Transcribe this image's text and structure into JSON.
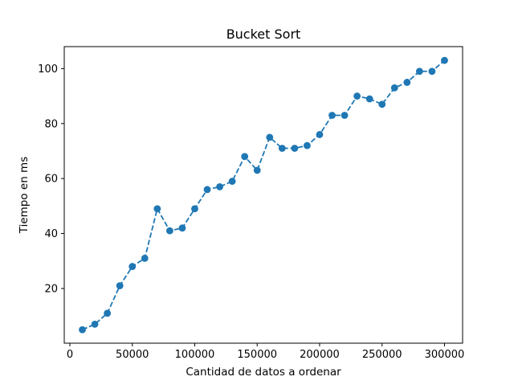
{
  "chart_data": {
    "type": "line",
    "title": "Bucket Sort",
    "xlabel": "Cantidad de datos a ordenar",
    "ylabel": "Tiempo en ms",
    "xlim": [
      -4500,
      314500
    ],
    "ylim": [
      0.1,
      108
    ],
    "x_ticks": [
      0,
      50000,
      100000,
      150000,
      200000,
      250000,
      300000
    ],
    "x_tick_labels": [
      "0",
      "50000",
      "100000",
      "150000",
      "200000",
      "250000",
      "300000"
    ],
    "y_ticks": [
      20,
      40,
      60,
      80,
      100
    ],
    "y_tick_labels": [
      "20",
      "40",
      "60",
      "80",
      "100"
    ],
    "grid": false,
    "series": [
      {
        "color": "#1f77b4",
        "line_style": "dashed",
        "marker": "circle",
        "x": [
          10000,
          20000,
          30000,
          40000,
          50000,
          60000,
          70000,
          80000,
          90000,
          100000,
          110000,
          120000,
          130000,
          140000,
          150000,
          160000,
          170000,
          180000,
          190000,
          200000,
          210000,
          220000,
          230000,
          240000,
          250000,
          260000,
          270000,
          280000,
          290000,
          300000
        ],
        "y": [
          5,
          7,
          11,
          21,
          28,
          31,
          49,
          41,
          42,
          49,
          56,
          57,
          59,
          68,
          63,
          75,
          71,
          71,
          72,
          76,
          83,
          83,
          90,
          89,
          87,
          93,
          95,
          99,
          99,
          103
        ]
      }
    ]
  }
}
